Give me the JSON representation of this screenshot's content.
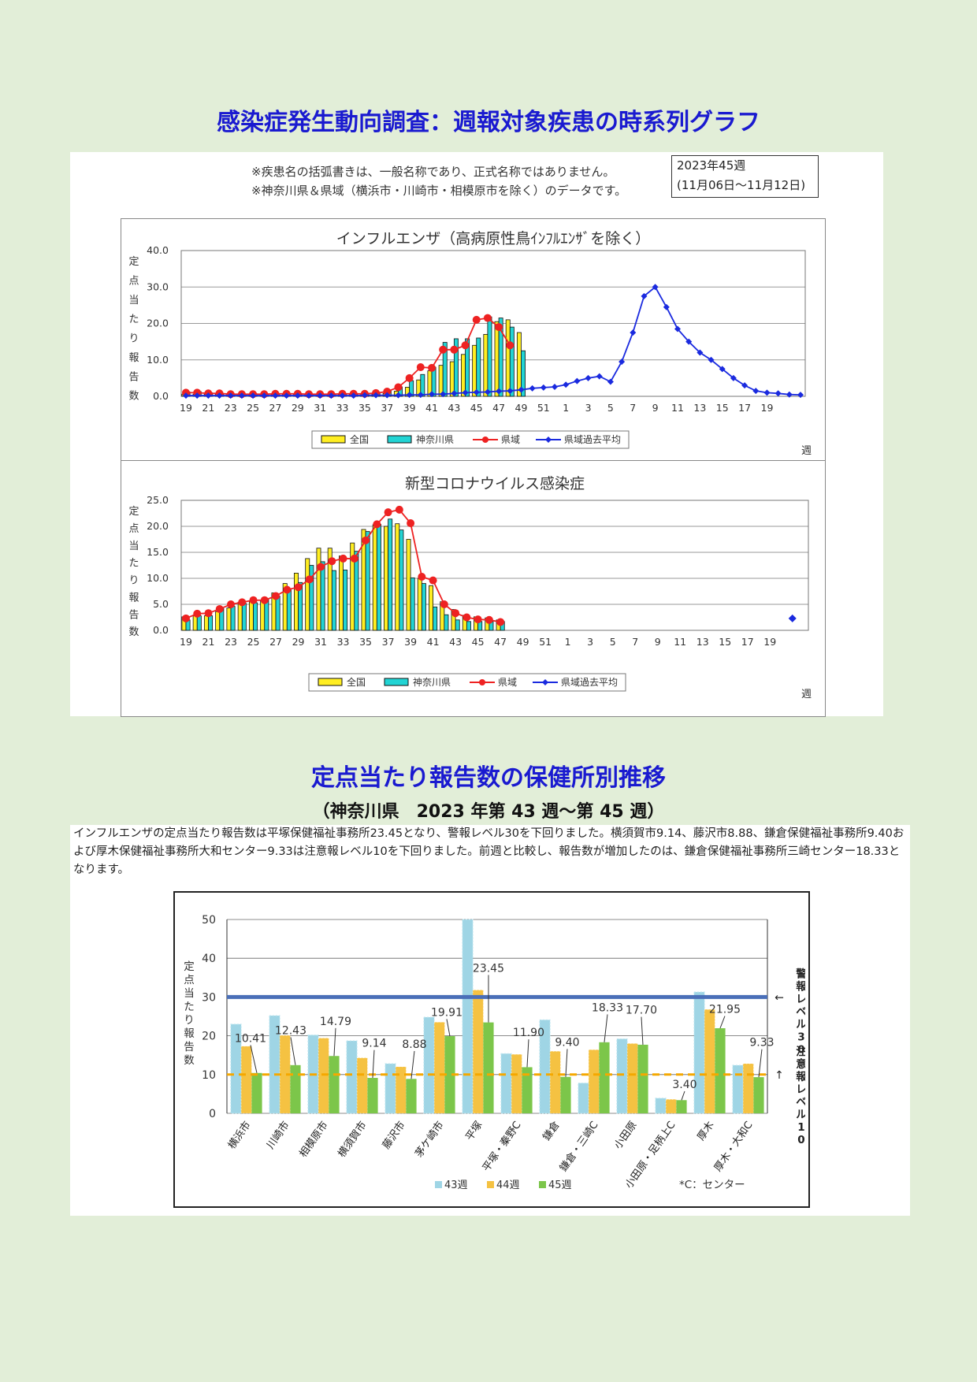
{
  "page": {
    "title_main": "感染症発生動向調査：週報対象疾患の時系列グラフ",
    "title_sub": "定点当たり報告数の保健所別推移",
    "title_period": "（神奈川県　2023 年第 43 週～第 45 週）"
  },
  "notes": {
    "line1": "※疾患名の括弧書きは、一般名称であり、正式名称ではありません。",
    "line2": "※神奈川県＆県域（横浜市・川崎市・相模原市を除く）のデータです。",
    "week_label": "2023年45週",
    "week_range": "(11月06日～11月12日)"
  },
  "paragraph": "インフルエンザの定点当たり報告数は平塚保健福祉事務所23.45となり、警報レベル30を下回りました。横須賀市9.14、藤沢市8.88、鎌倉保健福祉事務所9.40および厚木保健福祉事務所大和センター9.33は注意報レベル10を下回りました。前週と比較し、報告数が増加したのは、鎌倉保健福祉事務所三崎センター18.33となります。",
  "colors": {
    "national": "#ffee22",
    "kanagawa": "#22d4d4",
    "prefecture": "#ee2222",
    "past_avg": "#1a2adf",
    "title_blue": "#1a1ad0",
    "w43": "#9fd5e5",
    "w44": "#f5c242",
    "w45": "#7cc64a",
    "alert": "#4a6fb8",
    "warning": "#f5a800"
  },
  "chart_data": [
    {
      "type": "bar",
      "title": "インフルエンザ（高病原性鳥ｲﾝﾌﾙｴﾝｻﾞを除く）",
      "ylabel": "定点当たり報告数",
      "xlabel": "週",
      "ylim": [
        0,
        40
      ],
      "yticks": [
        "0.0",
        "10.0",
        "20.0",
        "30.0",
        "40.0"
      ],
      "x_tick_labels": [
        "19",
        "21",
        "23",
        "25",
        "27",
        "29",
        "31",
        "33",
        "35",
        "37",
        "39",
        "41",
        "43",
        "45",
        "47",
        "49",
        "51",
        "1",
        "3",
        "5",
        "7",
        "9",
        "11",
        "13",
        "15",
        "17",
        "19"
      ],
      "legend": [
        "全国",
        "神奈川県",
        "県域",
        "県域過去平均"
      ],
      "series": [
        {
          "name": "全国",
          "kind": "bar",
          "values": [
            0.6,
            0.6,
            0.6,
            0.6,
            0.6,
            0.6,
            0.6,
            0.5,
            0.5,
            0.5,
            0.5,
            0.5,
            0.6,
            0.6,
            0.6,
            0.6,
            0.6,
            0.6,
            0.8,
            1.4,
            2.5,
            4.5,
            7.0,
            8.5,
            9.5,
            11.5,
            14.0,
            17.0,
            20.5,
            21.0,
            17.5
          ]
        },
        {
          "name": "神奈川県",
          "kind": "bar",
          "values": [
            1.2,
            1.3,
            1.0,
            0.8,
            0.7,
            0.6,
            0.7,
            0.6,
            0.7,
            0.8,
            0.8,
            0.6,
            0.6,
            0.7,
            0.7,
            0.6,
            0.7,
            0.9,
            1.5,
            2.6,
            4.3,
            6.0,
            8.0,
            14.8,
            15.8,
            15.8,
            16.0,
            21.8,
            21.5,
            19.0,
            12.5
          ]
        },
        {
          "name": "県域",
          "kind": "line",
          "values": [
            1.0,
            1.0,
            0.8,
            0.8,
            0.6,
            0.6,
            0.6,
            0.6,
            0.7,
            0.7,
            0.7,
            0.6,
            0.6,
            0.6,
            0.7,
            0.7,
            0.7,
            0.9,
            1.3,
            2.5,
            5.0,
            8.0,
            7.8,
            12.8,
            12.8,
            14.0,
            21.0,
            21.5,
            19.0,
            14.0
          ]
        },
        {
          "name": "県域過去平均",
          "kind": "line",
          "values": [
            0.2,
            0.2,
            0.2,
            0.2,
            0.2,
            0.2,
            0.2,
            0.2,
            0.2,
            0.2,
            0.2,
            0.2,
            0.2,
            0.2,
            0.2,
            0.2,
            0.3,
            0.3,
            0.3,
            0.3,
            0.4,
            0.4,
            0.6,
            0.6,
            0.8,
            1.0,
            1.1,
            1.2,
            1.4,
            1.5,
            1.8,
            2.2,
            2.4,
            2.6,
            3.2,
            4.2,
            5.0,
            5.5,
            4.0,
            9.5,
            17.5,
            27.5,
            30.0,
            24.5,
            18.5,
            15.0,
            12.0,
            10.0,
            7.5,
            5.0,
            3.0,
            1.5,
            1.0,
            0.8,
            0.5,
            0.4
          ]
        }
      ]
    },
    {
      "type": "bar",
      "title": "新型コロナウイルス感染症",
      "ylabel": "定点当たり報告数",
      "xlabel": "週",
      "ylim": [
        0,
        25
      ],
      "yticks": [
        "0.0",
        "5.0",
        "10.0",
        "15.0",
        "20.0",
        "25.0"
      ],
      "x_tick_labels": [
        "19",
        "21",
        "23",
        "25",
        "27",
        "29",
        "31",
        "33",
        "35",
        "37",
        "39",
        "41",
        "43",
        "45",
        "47",
        "49",
        "51",
        "1",
        "3",
        "5",
        "7",
        "9",
        "11",
        "13",
        "15",
        "17",
        "19"
      ],
      "legend": [
        "全国",
        "神奈川県",
        "県域",
        "県域過去平均"
      ],
      "series": [
        {
          "name": "全国",
          "kind": "bar",
          "values": [
            2.6,
            2.8,
            2.8,
            3.6,
            4.3,
            5.4,
            5.6,
            5.8,
            7.2,
            9.0,
            11.0,
            13.8,
            15.8,
            15.8,
            14.3,
            16.8,
            19.4,
            20.3,
            20.0,
            20.5,
            17.5,
            10.0,
            8.6,
            5.5,
            4.0,
            2.9,
            2.6,
            2.4,
            2.0
          ]
        },
        {
          "name": "神奈川県",
          "kind": "bar",
          "values": [
            2.0,
            2.8,
            2.8,
            4.2,
            4.6,
            5.2,
            5.3,
            6.0,
            6.6,
            8.0,
            9.2,
            12.5,
            13.2,
            11.5,
            11.6,
            15.2,
            19.0,
            20.4,
            21.4,
            19.3,
            10.1,
            9.0,
            4.5,
            3.0,
            2.0,
            1.7,
            1.7,
            1.7,
            1.7
          ]
        },
        {
          "name": "県域",
          "kind": "line",
          "values": [
            2.3,
            3.2,
            3.3,
            4.1,
            5.0,
            5.4,
            5.8,
            5.8,
            6.6,
            7.8,
            8.3,
            9.8,
            12.2,
            13.3,
            13.8,
            13.8,
            17.3,
            20.4,
            22.7,
            23.2,
            20.6,
            10.3,
            9.6,
            5.0,
            3.3,
            2.5,
            2.1,
            2.0,
            1.6
          ]
        },
        {
          "name": "県域過去平均",
          "kind": "point",
          "week": "19",
          "values": [
            2.3
          ]
        }
      ]
    },
    {
      "type": "bar",
      "ylabel": "定点当たり報告数",
      "ylim": [
        0,
        50
      ],
      "yticks": [
        "0",
        "10",
        "20",
        "30",
        "40",
        "50"
      ],
      "categories": [
        "横浜市",
        "川崎市",
        "相模原市",
        "横須賀市",
        "藤沢市",
        "茅ケ崎市",
        "平塚",
        "平塚・秦野C",
        "鎌倉",
        "鎌倉・三崎C",
        "小田原",
        "小田原・足柄上C",
        "厚木",
        "厚木・大和C"
      ],
      "series": [
        {
          "name": "43週",
          "values": [
            23.0,
            25.2,
            20.2,
            18.7,
            12.8,
            24.8,
            50.0,
            15.4,
            24.1,
            7.8,
            19.2,
            3.9,
            31.3,
            12.4
          ]
        },
        {
          "name": "44週",
          "values": [
            17.3,
            20.1,
            19.4,
            14.3,
            12.0,
            23.5,
            31.8,
            15.2,
            16.0,
            16.4,
            18.0,
            3.6,
            26.8,
            12.8
          ]
        },
        {
          "name": "45週",
          "values": [
            10.41,
            12.43,
            14.79,
            9.14,
            8.88,
            19.91,
            23.45,
            11.9,
            9.4,
            18.33,
            17.7,
            3.4,
            21.95,
            9.33
          ]
        }
      ],
      "data_labels": [
        "10.41",
        "12.43",
        "14.79",
        "9.14",
        "8.88",
        "19.91",
        "23.45",
        "11.90",
        "9.40",
        "18.33",
        "17.70",
        "3.40",
        "21.95",
        "9.33"
      ],
      "alert_level": 30,
      "warning_level": 10,
      "alert_label": "警報レベル30",
      "warning_label": "注意報レベル10",
      "footnote": "*C：センター",
      "legend": [
        "43週",
        "44週",
        "45週"
      ]
    }
  ]
}
